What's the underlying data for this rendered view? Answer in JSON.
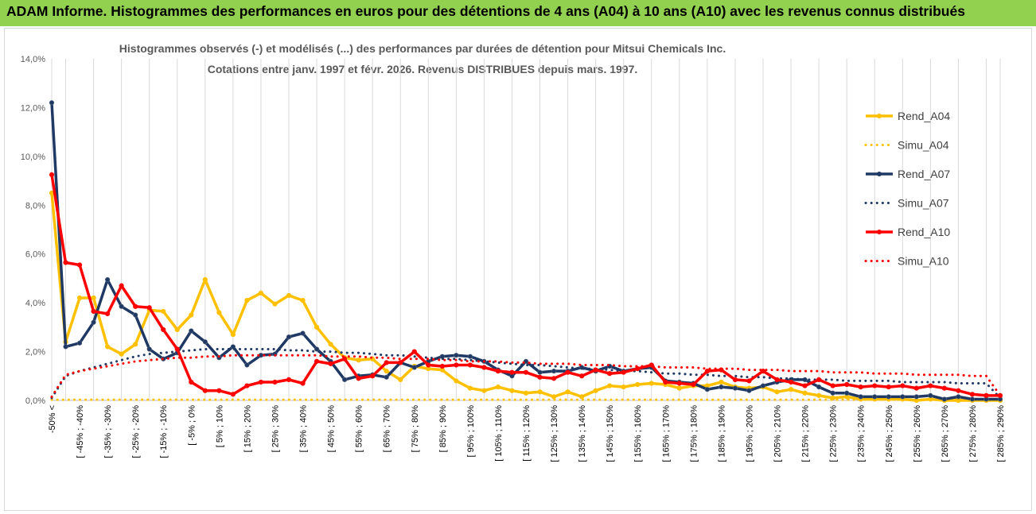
{
  "header": {
    "title": "ADAM Informe. Histogrammes des performances en euros pour des détentions de 4 ans (A04) à 10 ans (A10) avec les revenus connus distribués"
  },
  "chart_data": {
    "type": "line",
    "title_line1": "Histogrammes observés (-) et modélisés (...) des performances par durées de détention pour Mitsui Chemicals Inc.",
    "title_line2": "Cotations entre janv. 1997 et févr. 2026. Revenus DISTRIBUES depuis mars. 1997.",
    "ylim": [
      0,
      14
    ],
    "yticks": [
      0,
      2,
      4,
      6,
      8,
      10,
      12,
      14
    ],
    "ytick_labels": [
      "0,0%",
      "2,0%",
      "4,0%",
      "6,0%",
      "8,0%",
      "10,0%",
      "12,0%",
      "14,0%"
    ],
    "x_count": 69,
    "x_tick_labels": [
      "-50% <",
      "[ -45% ; -40%",
      "[ -35% ; -30%",
      "[ -25% ; -20%",
      "[ -15% ; -10%",
      "[ -5% ; 0%",
      "[ 5% ; 10%",
      "[ 15% ; 20%",
      "[ 25% ; 30%",
      "[ 35% ; 40%",
      "[ 45% ; 50%",
      "[ 55% ; 60%",
      "[ 65% ; 70%",
      "[ 75% ; 80%",
      "[ 85% ; 90%",
      "[ 95% ; 100%",
      "[ 105% ; 110%",
      "[ 115% ; 120%",
      "[ 125% ; 130%",
      "[ 135% ; 140%",
      "[ 145% ; 150%",
      "[ 155% ; 160%",
      "[ 165% ; 170%",
      "[ 175% ; 180%",
      "[ 185% ; 190%",
      "[ 195% ; 200%",
      "[ 205% ; 210%",
      "[ 215% ; 220%",
      "[ 225% ; 230%",
      "[ 235% ; 240%",
      "[ 245% ; 250%",
      "[ 255% ; 260%",
      "[ 265% ; 270%",
      "[ 275% ; 280%",
      "[ 285% ; 290%"
    ],
    "series": [
      {
        "name": "Rend_A04",
        "style": "solid",
        "color": "#ffc000",
        "values": [
          8.5,
          2.4,
          4.2,
          4.2,
          2.2,
          1.9,
          2.3,
          3.7,
          3.65,
          2.9,
          3.5,
          4.95,
          3.6,
          2.7,
          4.1,
          4.4,
          3.95,
          4.3,
          4.1,
          3.0,
          2.3,
          1.75,
          1.65,
          1.7,
          1.2,
          0.85,
          1.4,
          1.3,
          1.25,
          0.8,
          0.5,
          0.4,
          0.55,
          0.4,
          0.3,
          0.35,
          0.15,
          0.35,
          0.15,
          0.4,
          0.6,
          0.55,
          0.65,
          0.7,
          0.65,
          0.5,
          0.6,
          0.6,
          0.75,
          0.55,
          0.5,
          0.55,
          0.35,
          0.45,
          0.3,
          0.2,
          0.1,
          0.15,
          0.05,
          0.05,
          0.05,
          0.05,
          0.0,
          0.05,
          0.0,
          0.0,
          0.0,
          0.0,
          0.0
        ]
      },
      {
        "name": "Simu_A04",
        "style": "dotted",
        "color": "#ffc000",
        "values": [
          0.03,
          0.03,
          0.03,
          0.03,
          0.03,
          0.03,
          0.03,
          0.03,
          0.03,
          0.03,
          0.03,
          0.03,
          0.03,
          0.03,
          0.03,
          0.03,
          0.03,
          0.03,
          0.03,
          0.03,
          0.03,
          0.03,
          0.03,
          0.03,
          0.03,
          0.03,
          0.03,
          0.03,
          0.03,
          0.03,
          0.03,
          0.03,
          0.03,
          0.03,
          0.03,
          0.03,
          0.03,
          0.03,
          0.03,
          0.03,
          0.03,
          0.03,
          0.03,
          0.03,
          0.03,
          0.03,
          0.03,
          0.03,
          0.03,
          0.03,
          0.03,
          0.03,
          0.03,
          0.03,
          0.03,
          0.03,
          0.03,
          0.03,
          0.03,
          0.03,
          0.03,
          0.03,
          0.03,
          0.03,
          0.03,
          0.03,
          0.03,
          0.03,
          0.03
        ]
      },
      {
        "name": "Rend_A07",
        "style": "solid",
        "color": "#1f3864",
        "values": [
          12.2,
          2.2,
          2.35,
          3.2,
          4.95,
          3.85,
          3.5,
          2.1,
          1.7,
          1.95,
          2.85,
          2.4,
          1.75,
          2.2,
          1.45,
          1.85,
          1.9,
          2.6,
          2.75,
          2.1,
          1.6,
          0.85,
          1.0,
          1.05,
          0.95,
          1.55,
          1.35,
          1.6,
          1.8,
          1.85,
          1.8,
          1.6,
          1.25,
          1.0,
          1.6,
          1.15,
          1.2,
          1.2,
          1.35,
          1.2,
          1.4,
          1.2,
          1.3,
          1.35,
          0.8,
          0.75,
          0.7,
          0.45,
          0.55,
          0.5,
          0.4,
          0.6,
          0.75,
          0.85,
          0.85,
          0.55,
          0.3,
          0.3,
          0.15,
          0.15,
          0.15,
          0.15,
          0.15,
          0.2,
          0.05,
          0.15,
          0.05,
          0.05,
          0.05
        ]
      },
      {
        "name": "Simu_A07",
        "style": "dotted",
        "color": "#1f3864",
        "values": [
          0.1,
          1.0,
          1.2,
          1.35,
          1.5,
          1.65,
          1.8,
          1.9,
          1.95,
          2.0,
          2.05,
          2.1,
          2.1,
          2.1,
          2.1,
          2.1,
          2.1,
          2.05,
          2.05,
          2.0,
          2.0,
          1.95,
          1.95,
          1.9,
          1.85,
          1.85,
          1.8,
          1.75,
          1.7,
          1.7,
          1.65,
          1.6,
          1.55,
          1.5,
          1.45,
          1.45,
          1.4,
          1.35,
          1.3,
          1.3,
          1.25,
          1.2,
          1.2,
          1.15,
          1.1,
          1.1,
          1.05,
          1.05,
          1.0,
          1.0,
          0.95,
          0.95,
          0.9,
          0.9,
          0.85,
          0.85,
          0.85,
          0.8,
          0.8,
          0.8,
          0.8,
          0.75,
          0.75,
          0.75,
          0.75,
          0.7,
          0.7,
          0.7,
          0.1
        ]
      },
      {
        "name": "Rend_A10",
        "style": "solid",
        "color": "#ff0000",
        "values": [
          9.25,
          5.65,
          5.55,
          3.65,
          3.55,
          4.7,
          3.85,
          3.8,
          2.9,
          2.1,
          0.75,
          0.4,
          0.4,
          0.25,
          0.6,
          0.75,
          0.75,
          0.85,
          0.7,
          1.6,
          1.5,
          1.7,
          0.9,
          1.0,
          1.55,
          1.55,
          2.0,
          1.45,
          1.4,
          1.45,
          1.45,
          1.35,
          1.2,
          1.15,
          1.15,
          0.95,
          0.9,
          1.15,
          1.0,
          1.25,
          1.1,
          1.15,
          1.3,
          1.45,
          0.75,
          0.7,
          0.65,
          1.2,
          1.25,
          0.85,
          0.8,
          1.2,
          0.85,
          0.75,
          0.6,
          0.85,
          0.6,
          0.65,
          0.55,
          0.6,
          0.55,
          0.6,
          0.5,
          0.6,
          0.5,
          0.4,
          0.25,
          0.2,
          0.2
        ]
      },
      {
        "name": "Simu_A10",
        "style": "dotted",
        "color": "#ff0000",
        "values": [
          0.15,
          1.05,
          1.2,
          1.3,
          1.4,
          1.5,
          1.6,
          1.65,
          1.7,
          1.75,
          1.75,
          1.8,
          1.8,
          1.85,
          1.85,
          1.85,
          1.85,
          1.85,
          1.85,
          1.85,
          1.8,
          1.8,
          1.8,
          1.75,
          1.75,
          1.7,
          1.7,
          1.7,
          1.65,
          1.65,
          1.6,
          1.6,
          1.6,
          1.55,
          1.55,
          1.5,
          1.5,
          1.5,
          1.45,
          1.45,
          1.45,
          1.4,
          1.4,
          1.4,
          1.35,
          1.35,
          1.35,
          1.3,
          1.3,
          1.3,
          1.25,
          1.25,
          1.25,
          1.2,
          1.2,
          1.2,
          1.15,
          1.15,
          1.15,
          1.1,
          1.1,
          1.1,
          1.05,
          1.05,
          1.05,
          1.05,
          1.0,
          1.0,
          0.2
        ]
      }
    ]
  }
}
